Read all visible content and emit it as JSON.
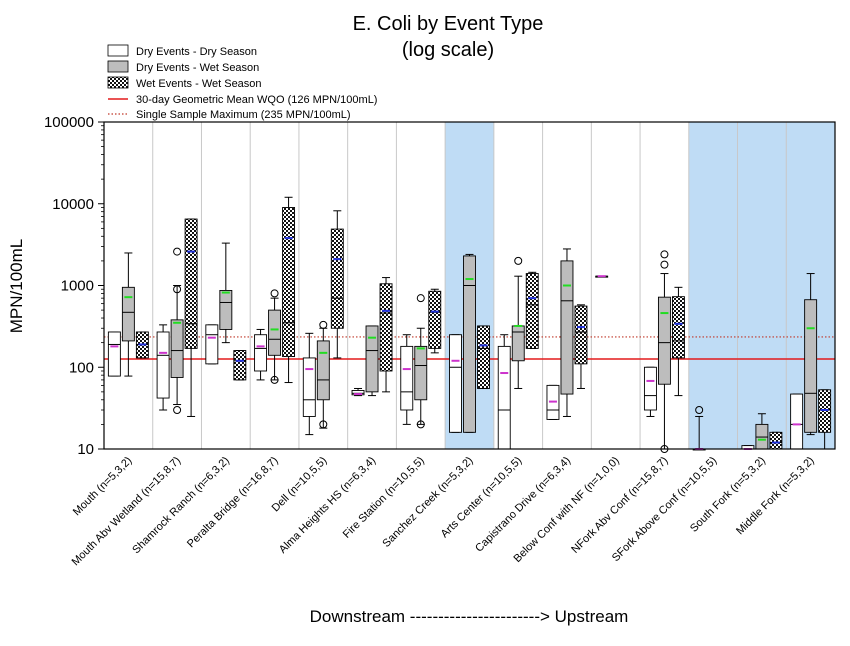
{
  "chart_data": {
    "type": "box",
    "title_line1": "E. Coli by Event Type",
    "title_line2": "(log scale)",
    "ylabel": "MPN/100mL",
    "xlabel": "Downstream -----------------------> Upstream",
    "yscale": "log",
    "ylim": [
      10,
      100000
    ],
    "y_ticks": [
      "10",
      "100",
      "1000",
      "10000",
      "100000"
    ],
    "categories": [
      "Mouth (n=5,3,2)",
      "Mouth Abv Wetland (n=15,8,7)",
      "Shamrock Ranch (n=6,3,2)",
      "Peralta Bridge (n=16,8,7)",
      "Dell (n=10,5,5)",
      "Alma Heights HS (n=6,3,4)",
      "Fire Station (n=10,5,5)",
      "Sanchez Creek (n=5,3,2)",
      "Arts Center (n=10,5,5)",
      "Capistrano Drive (n=6,3,4)",
      "Below Conf with NF (n=1,0,0)",
      "NFork Abv Conf (n=15,8,7)",
      "SFork Above Conf (n=10,5,5)",
      "South Fork (n=5,3,2)",
      "Middle Fork (n=5,3,2)"
    ],
    "shaded_category_indices": [
      7,
      12,
      13,
      14
    ],
    "shade_color": "#bfdcf5",
    "legend": {
      "placement": "top-left",
      "items": [
        {
          "label": "Dry Events - Dry Season",
          "kind": "dry"
        },
        {
          "label": "Dry Events - Wet Season",
          "kind": "drywet"
        },
        {
          "label": "Wet Events - Wet Season",
          "kind": "wet"
        },
        {
          "label": "30-day Geometric Mean WQO (126 MPN/100mL)",
          "kind": "solid-line"
        },
        {
          "label": "Single Sample Maximum (235 MPN/100mL)",
          "kind": "dotted-line"
        }
      ]
    },
    "reference_lines": [
      {
        "value": 126,
        "style": "solid",
        "color": "#e41a1c"
      },
      {
        "value": 235,
        "style": "dotted",
        "color": "#c0392b"
      }
    ],
    "series": [
      {
        "name": "Dry Events - Dry Season",
        "kind": "dry",
        "boxes": [
          {
            "cat": 0,
            "wlo": 78,
            "q1": 78,
            "med": 190,
            "q3": 270,
            "whi": 270,
            "mean": 180,
            "out": []
          },
          {
            "cat": 1,
            "wlo": 30,
            "q1": 42,
            "med": 140,
            "q3": 270,
            "whi": 330,
            "mean": 150,
            "out": []
          },
          {
            "cat": 2,
            "wlo": 110,
            "q1": 110,
            "med": 250,
            "q3": 330,
            "whi": 330,
            "mean": 230,
            "out": []
          },
          {
            "cat": 3,
            "wlo": 70,
            "q1": 90,
            "med": 170,
            "q3": 250,
            "whi": 290,
            "mean": 180,
            "out": []
          },
          {
            "cat": 4,
            "wlo": 15,
            "q1": 25,
            "med": 40,
            "q3": 130,
            "whi": 260,
            "mean": 95,
            "out": []
          },
          {
            "cat": 5,
            "wlo": 45,
            "q1": 46,
            "med": 48,
            "q3": 52,
            "whi": 55,
            "mean": 47,
            "out": []
          },
          {
            "cat": 6,
            "wlo": 20,
            "q1": 30,
            "med": 50,
            "q3": 180,
            "whi": 250,
            "mean": 95,
            "out": []
          },
          {
            "cat": 7,
            "wlo": 16,
            "q1": 16,
            "med": 100,
            "q3": 250,
            "whi": 250,
            "mean": 120,
            "out": []
          },
          {
            "cat": 8,
            "wlo": 10,
            "q1": 10,
            "med": 30,
            "q3": 180,
            "whi": 250,
            "mean": 85,
            "out": []
          },
          {
            "cat": 9,
            "wlo": 23,
            "q1": 23,
            "med": 30,
            "q3": 60,
            "whi": 60,
            "mean": 38,
            "out": []
          },
          {
            "cat": 10,
            "wlo": 1300,
            "q1": 1300,
            "med": 1300,
            "q3": 1300,
            "whi": 1300,
            "mean": 1300,
            "out": []
          },
          {
            "cat": 11,
            "wlo": 25,
            "q1": 30,
            "med": 45,
            "q3": 100,
            "whi": 100,
            "mean": 68,
            "out": []
          },
          {
            "cat": 12,
            "wlo": 10,
            "q1": 10,
            "med": 10,
            "q3": 10,
            "whi": 25,
            "mean": 10,
            "out": [
              30
            ]
          },
          {
            "cat": 13,
            "wlo": 10,
            "q1": 10,
            "med": 10,
            "q3": 11,
            "whi": 11,
            "mean": 10,
            "out": []
          },
          {
            "cat": 14,
            "wlo": 10,
            "q1": 10,
            "med": 20,
            "q3": 47,
            "whi": 47,
            "mean": 20,
            "out": []
          }
        ]
      },
      {
        "name": "Dry Events - Wet Season",
        "kind": "drywet",
        "boxes": [
          {
            "cat": 0,
            "wlo": 78,
            "q1": 210,
            "med": 470,
            "q3": 950,
            "whi": 2500,
            "mean": 720,
            "out": []
          },
          {
            "cat": 1,
            "wlo": 35,
            "q1": 75,
            "med": 160,
            "q3": 380,
            "whi": 1000,
            "mean": 350,
            "out": [
              30,
              900,
              2600
            ]
          },
          {
            "cat": 2,
            "wlo": 200,
            "q1": 290,
            "med": 620,
            "q3": 870,
            "whi": 3300,
            "mean": 820,
            "out": []
          },
          {
            "cat": 3,
            "wlo": 70,
            "q1": 140,
            "med": 220,
            "q3": 500,
            "whi": 700,
            "mean": 290,
            "out": [
              70,
              800
            ]
          },
          {
            "cat": 4,
            "wlo": 18,
            "q1": 40,
            "med": 70,
            "q3": 210,
            "whi": 300,
            "mean": 150,
            "out": [
              20,
              330
            ]
          },
          {
            "cat": 5,
            "wlo": 45,
            "q1": 50,
            "med": 160,
            "q3": 320,
            "whi": 320,
            "mean": 230,
            "out": []
          },
          {
            "cat": 6,
            "wlo": 20,
            "q1": 40,
            "med": 105,
            "q3": 180,
            "whi": 300,
            "mean": 170,
            "out": [
              20,
              700
            ]
          },
          {
            "cat": 7,
            "wlo": 16,
            "q1": 16,
            "med": 1000,
            "q3": 2300,
            "whi": 2400,
            "mean": 1200,
            "out": []
          },
          {
            "cat": 8,
            "wlo": 55,
            "q1": 120,
            "med": 270,
            "q3": 320,
            "whi": 1300,
            "mean": 320,
            "out": [
              2000
            ]
          },
          {
            "cat": 9,
            "wlo": 25,
            "q1": 47,
            "med": 650,
            "q3": 2000,
            "whi": 2800,
            "mean": 1000,
            "out": []
          },
          {
            "cat": 11,
            "wlo": 10,
            "q1": 62,
            "med": 200,
            "q3": 720,
            "whi": 1400,
            "mean": 460,
            "out": [
              10,
              1800,
              2400
            ]
          },
          {
            "cat": 13,
            "wlo": 10,
            "q1": 10,
            "med": 14,
            "q3": 20,
            "whi": 27,
            "mean": 13,
            "out": []
          },
          {
            "cat": 14,
            "wlo": 15,
            "q1": 16,
            "med": 48,
            "q3": 670,
            "whi": 1400,
            "mean": 300,
            "out": []
          }
        ]
      },
      {
        "name": "Wet Events - Wet Season",
        "kind": "wet",
        "boxes": [
          {
            "cat": 0,
            "wlo": 130,
            "q1": 130,
            "med": 190,
            "q3": 270,
            "whi": 270,
            "mean": 190,
            "out": []
          },
          {
            "cat": 1,
            "wlo": 25,
            "q1": 170,
            "med": 340,
            "q3": 6500,
            "whi": 6500,
            "mean": 2600,
            "out": []
          },
          {
            "cat": 2,
            "wlo": 70,
            "q1": 70,
            "med": 120,
            "q3": 160,
            "whi": 160,
            "mean": 120,
            "out": []
          },
          {
            "cat": 3,
            "wlo": 65,
            "q1": 135,
            "med": 350,
            "q3": 9000,
            "whi": 12000,
            "mean": 3800,
            "out": []
          },
          {
            "cat": 4,
            "wlo": 130,
            "q1": 300,
            "med": 700,
            "q3": 4900,
            "whi": 8200,
            "mean": 2100,
            "out": []
          },
          {
            "cat": 5,
            "wlo": 50,
            "q1": 90,
            "med": 460,
            "q3": 1050,
            "whi": 1250,
            "mean": 490,
            "out": []
          },
          {
            "cat": 6,
            "wlo": 150,
            "q1": 170,
            "med": 470,
            "q3": 850,
            "whi": 900,
            "mean": 480,
            "out": []
          },
          {
            "cat": 7,
            "wlo": 55,
            "q1": 55,
            "med": 170,
            "q3": 320,
            "whi": 320,
            "mean": 185,
            "out": []
          },
          {
            "cat": 8,
            "wlo": 170,
            "q1": 170,
            "med": 580,
            "q3": 1400,
            "whi": 1450,
            "mean": 700,
            "out": []
          },
          {
            "cat": 9,
            "wlo": 55,
            "q1": 110,
            "med": 270,
            "q3": 560,
            "whi": 580,
            "mean": 310,
            "out": []
          },
          {
            "cat": 11,
            "wlo": 45,
            "q1": 130,
            "med": 210,
            "q3": 730,
            "whi": 950,
            "mean": 340,
            "out": []
          },
          {
            "cat": 13,
            "wlo": 10,
            "q1": 10,
            "med": 12,
            "q3": 16,
            "whi": 16,
            "mean": 12,
            "out": []
          },
          {
            "cat": 14,
            "wlo": 10,
            "q1": 16,
            "med": 30,
            "q3": 53,
            "whi": 53,
            "mean": 30,
            "out": []
          }
        ]
      }
    ]
  }
}
